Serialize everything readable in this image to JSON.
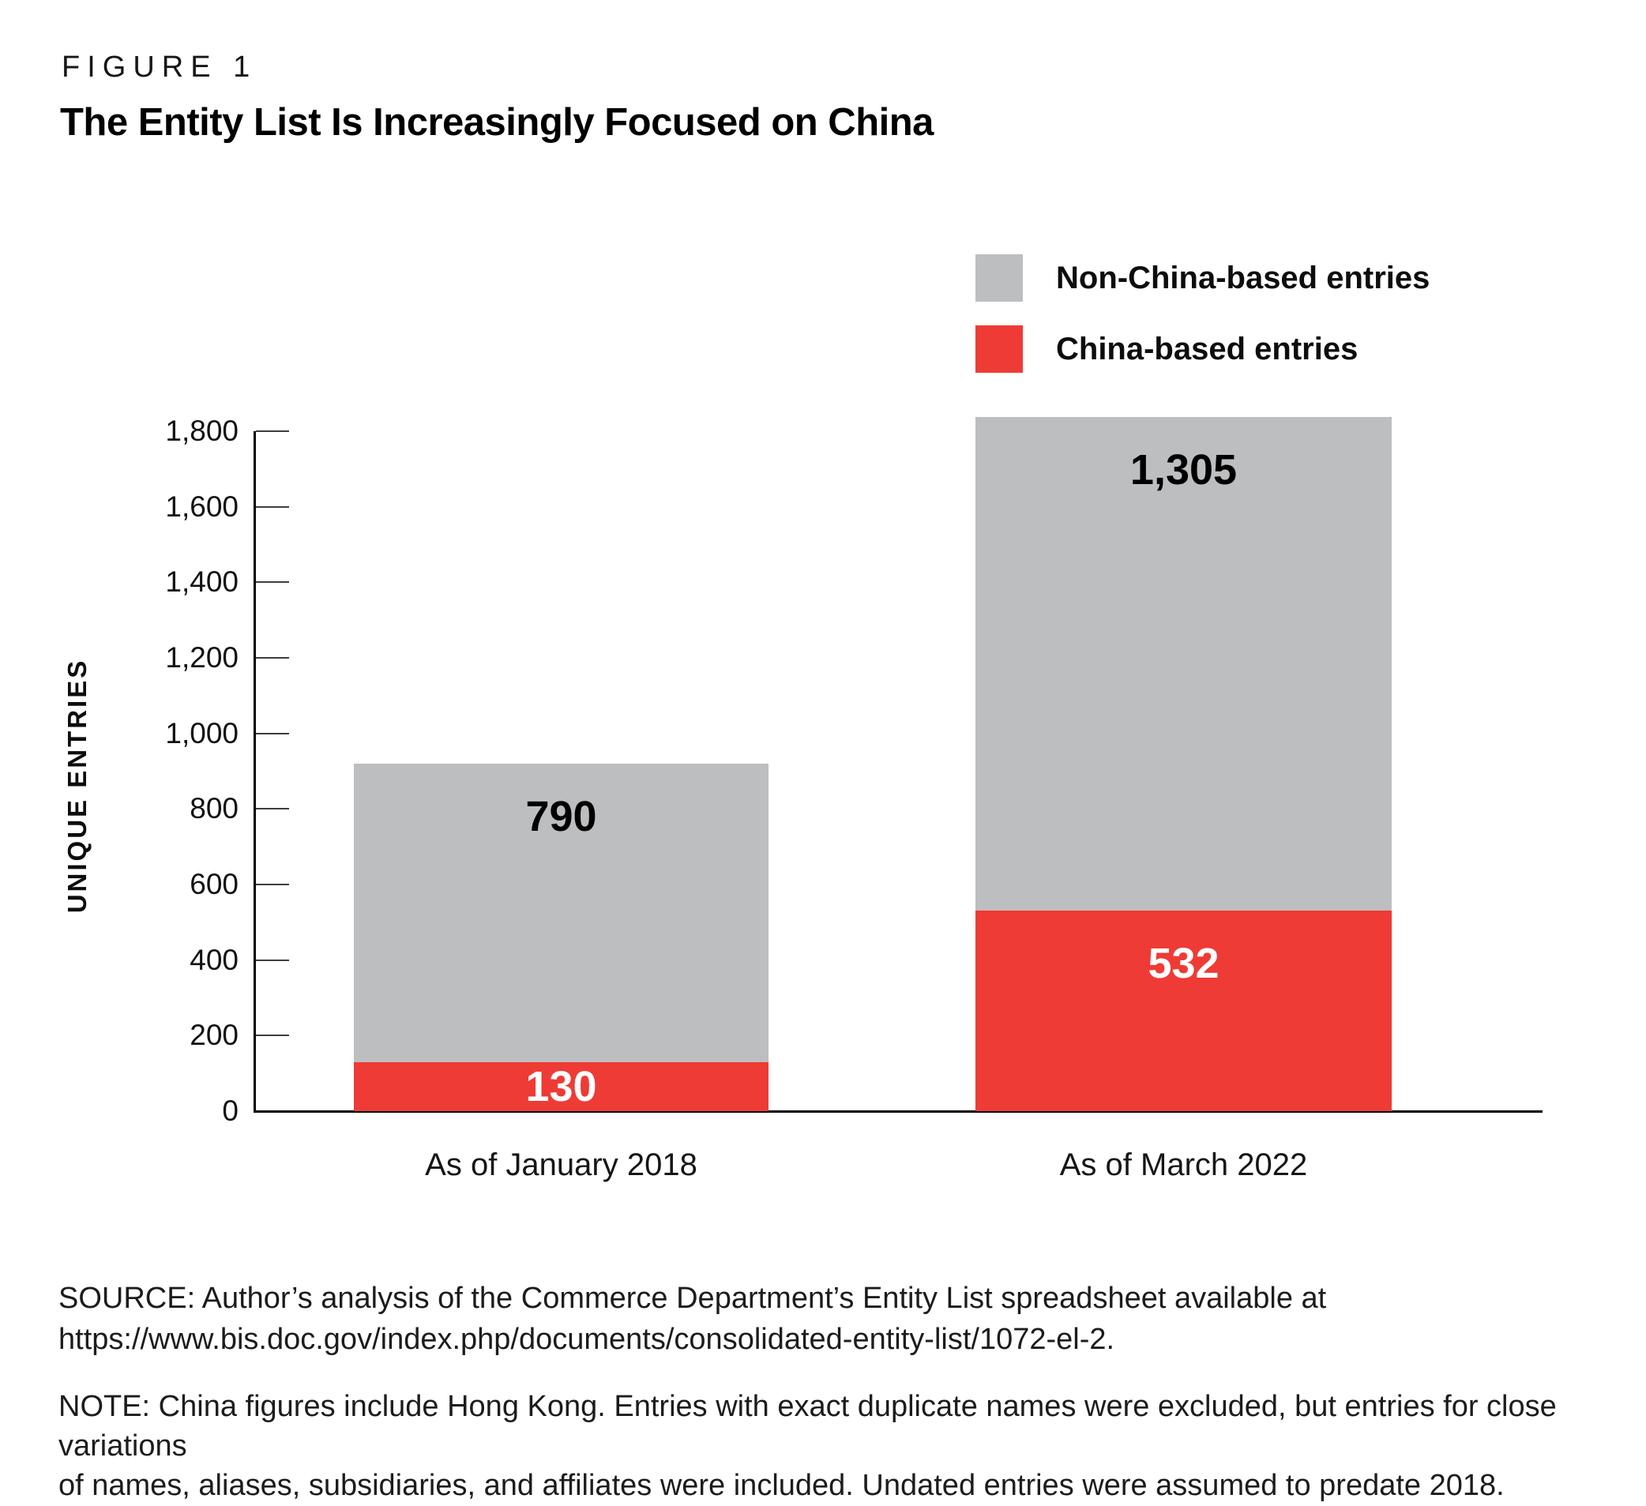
{
  "figure_label": "FIGURE 1",
  "title": "The Entity List Is Increasingly Focused on China",
  "legend": {
    "items": [
      {
        "label": "Non-China-based entries",
        "color": "#bdbec0"
      },
      {
        "label": "China-based entries",
        "color": "#ee3b35"
      }
    ]
  },
  "chart_data": {
    "type": "bar",
    "stacked": true,
    "title": "The Entity List Is Increasingly Focused on China",
    "categories": [
      "As of January 2018",
      "As of March 2022"
    ],
    "series": [
      {
        "name": "China-based entries",
        "color": "#ee3b35",
        "values": [
          130,
          532
        ],
        "labels": [
          "130",
          "532"
        ],
        "label_color": "#ffffff"
      },
      {
        "name": "Non-China-based entries",
        "color": "#bdbec0",
        "values": [
          790,
          1305
        ],
        "labels": [
          "790",
          "1,305"
        ],
        "label_color": "#000000"
      }
    ],
    "totals": [
      920,
      1837
    ],
    "xlabel": "",
    "ylabel": "UNIQUE ENTRIES",
    "ylim": [
      0,
      1800
    ],
    "ytick_interval": 200,
    "yticks": [
      {
        "value": 0,
        "label": "0"
      },
      {
        "value": 200,
        "label": "200"
      },
      {
        "value": 400,
        "label": "400"
      },
      {
        "value": 600,
        "label": "600"
      },
      {
        "value": 800,
        "label": "800"
      },
      {
        "value": 1000,
        "label": "1,000"
      },
      {
        "value": 1200,
        "label": "1,200"
      },
      {
        "value": 1400,
        "label": "1,400"
      },
      {
        "value": 1600,
        "label": "1,600"
      },
      {
        "value": 1800,
        "label": "1,800"
      }
    ],
    "grid": false,
    "legend_position": "top-right"
  },
  "source": {
    "lines": [
      "SOURCE: Author’s analysis of the Commerce Department’s Entity List spreadsheet available at",
      "https://www.bis.doc.gov/index.php/documents/consolidated-entity-list/1072-el-2."
    ]
  },
  "note": {
    "lines": [
      "NOTE: China figures include Hong Kong. Entries with exact duplicate names were excluded, but entries for close variations",
      "of names, aliases, subsidiaries, and affiliates were included. Undated entries were assumed to predate 2018."
    ]
  }
}
